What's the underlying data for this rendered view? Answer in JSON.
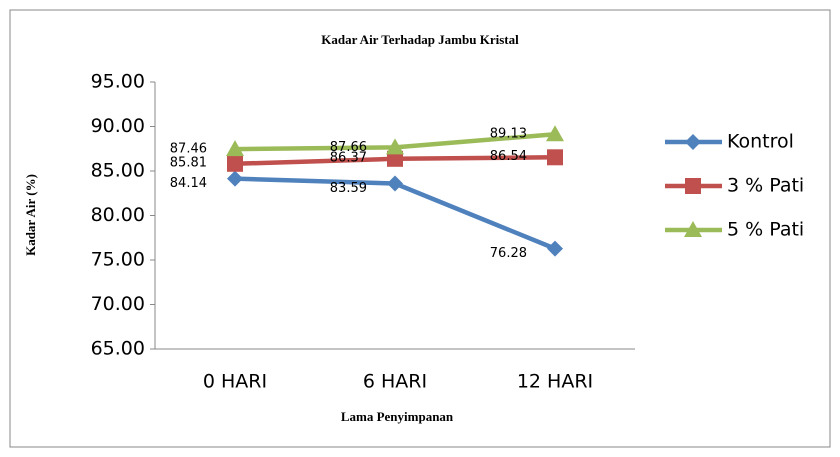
{
  "chart_data": {
    "type": "line",
    "title": "Kadar Air Terhadap Jambu Kristal",
    "xlabel": "Lama Penyimpanan",
    "ylabel": "Kadar Air (%)",
    "categories": [
      "0 HARI",
      "6 HARI",
      "12 HARI"
    ],
    "series": [
      {
        "name": "Kontrol",
        "color": "#4f81bd",
        "values": [
          84.14,
          83.59,
          76.28
        ]
      },
      {
        "name": "3 % Pati",
        "color": "#c0504d",
        "values": [
          85.81,
          86.37,
          86.54
        ]
      },
      {
        "name": "5 % Pati",
        "color": "#9bbb59",
        "values": [
          87.46,
          87.66,
          89.13
        ]
      }
    ],
    "ylim": [
      65,
      95
    ],
    "yticks": [
      {
        "value": 65,
        "label": "65.00"
      },
      {
        "value": 70,
        "label": "70.00"
      },
      {
        "value": 75,
        "label": "75.00"
      },
      {
        "value": 80,
        "label": "80.00"
      },
      {
        "value": 85,
        "label": "85.00"
      },
      {
        "value": 90,
        "label": "90.00"
      },
      {
        "value": 95,
        "label": "95.00"
      }
    ],
    "legend": "right"
  }
}
